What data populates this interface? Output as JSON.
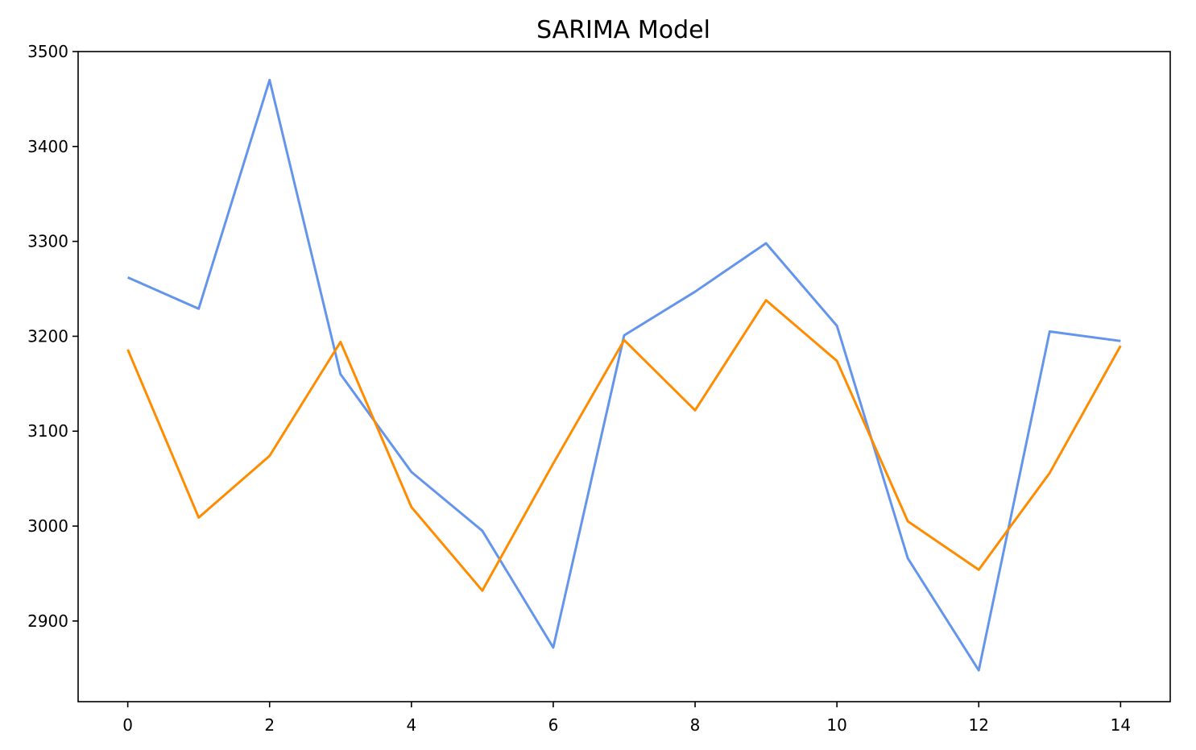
{
  "chart_data": {
    "type": "line",
    "title": "SARIMA Model",
    "xlabel": "",
    "ylabel": "",
    "xlim": [
      -0.7,
      14.7
    ],
    "ylim": [
      2815,
      3500
    ],
    "xticks": [
      0,
      2,
      4,
      6,
      8,
      10,
      12,
      14
    ],
    "yticks": [
      2900,
      3000,
      3100,
      3200,
      3300,
      3400,
      3500
    ],
    "x": [
      0,
      1,
      2,
      3,
      4,
      5,
      6,
      7,
      8,
      9,
      10,
      11,
      12,
      13,
      14
    ],
    "series": [
      {
        "color": "#6495ED",
        "values": [
          3262,
          3229,
          3470,
          3160,
          3057,
          2995,
          2872,
          3201,
          3247,
          3298,
          3211,
          2966,
          2848,
          3205,
          3195
        ]
      },
      {
        "color": "#FF8C00",
        "values": [
          3186,
          3009,
          3074,
          3194,
          3020,
          2932,
          3066,
          3196,
          3122,
          3238,
          3174,
          3005,
          2954,
          3056,
          3190
        ]
      }
    ],
    "grid": false,
    "legend": "none"
  }
}
